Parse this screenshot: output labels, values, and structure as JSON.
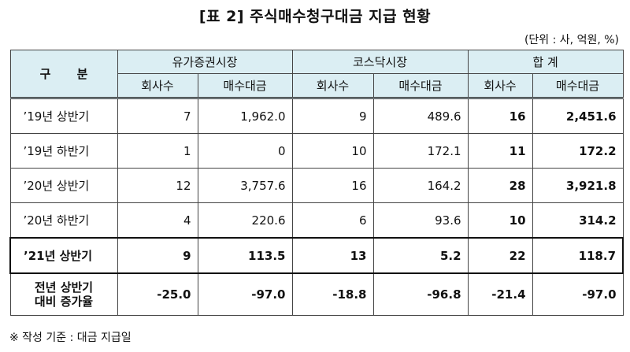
{
  "title": "[표 2] 주식매수청구대금 지급 현황",
  "unit_note": "(단위 : 사, 억원, %)",
  "header": {
    "category": "구  분",
    "groups": [
      "유가증권시장",
      "코스닥시장",
      "합  계"
    ],
    "subcols": [
      "회사수",
      "매수대금",
      "회사수",
      "매수대금",
      "회사수",
      "매수대금"
    ]
  },
  "rows": [
    {
      "label": "’19년 상반기",
      "cells": [
        "7",
        "1,962.0",
        "9",
        "489.6",
        "16",
        "2,451.6"
      ]
    },
    {
      "label": "’19년 하반기",
      "cells": [
        "1",
        "0",
        "10",
        "172.1",
        "11",
        "172.2"
      ]
    },
    {
      "label": "’20년 상반기",
      "cells": [
        "12",
        "3,757.6",
        "16",
        "164.2",
        "28",
        "3,921.8"
      ]
    },
    {
      "label": "’20년 하반기",
      "cells": [
        "4",
        "220.6",
        "6",
        "93.6",
        "10",
        "314.2"
      ]
    },
    {
      "label": "’21년 상반기",
      "cells": [
        "9",
        "113.5",
        "13",
        "5.2",
        "22",
        "118.7"
      ]
    }
  ],
  "yoy_row": {
    "label_line1": "전년 상반기",
    "label_line2": "대비 증가율",
    "cells": [
      "-25.0",
      "-97.0",
      "-18.8",
      "-96.8",
      "-21.4",
      "-97.0"
    ]
  },
  "footnote": "※ 작성 기준 : 대금 지급일"
}
